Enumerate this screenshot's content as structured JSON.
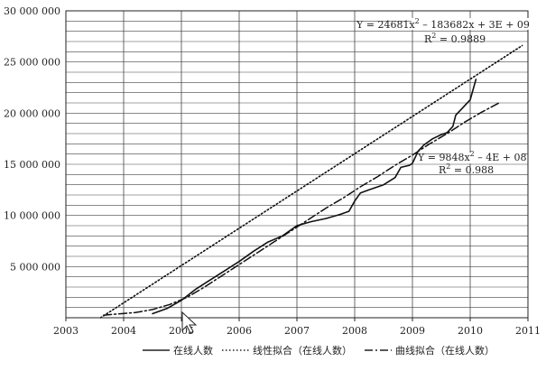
{
  "chart_data": {
    "type": "line",
    "xlim": [
      2003,
      2011
    ],
    "ylim": [
      0,
      30000000
    ],
    "grid": true,
    "x_ticks": [
      2003,
      2004,
      2005,
      2006,
      2007,
      2008,
      2009,
      2010,
      2011
    ],
    "x_tick_labels": [
      "2003",
      "2004",
      "2005",
      "2006",
      "2007",
      "2008",
      "2009",
      "2010",
      "2011"
    ],
    "y_ticks": [
      0,
      5000000,
      10000000,
      15000000,
      20000000,
      25000000,
      30000000
    ],
    "y_tick_labels": [
      "",
      "5 000 000",
      "10 000 000",
      "15 000 000",
      "20 000 000",
      "25 000 000",
      "30 000 000"
    ],
    "legend_position": "bottom",
    "series": [
      {
        "name": "在线人数",
        "style": "solid",
        "x": [
          2004.5,
          2004.75,
          2005.0,
          2005.25,
          2005.5,
          2005.75,
          2006.0,
          2006.25,
          2006.5,
          2006.75,
          2007.0,
          2007.25,
          2007.5,
          2007.75,
          2007.9,
          2008.0,
          2008.1,
          2008.25,
          2008.5,
          2008.7,
          2008.8,
          2008.95,
          2009.0,
          2009.1,
          2009.2,
          2009.35,
          2009.5,
          2009.6,
          2009.7,
          2009.75,
          2009.85,
          2010.0,
          2010.1
        ],
        "y": [
          400000,
          900000,
          1700000,
          2800000,
          3700000,
          4600000,
          5500000,
          6500000,
          7400000,
          8000000,
          9000000,
          9400000,
          9700000,
          10100000,
          10400000,
          11400000,
          12200000,
          12500000,
          13000000,
          13700000,
          14700000,
          14900000,
          15100000,
          16300000,
          16900000,
          17500000,
          17900000,
          18100000,
          18700000,
          19800000,
          20400000,
          21300000,
          23300000
        ]
      },
      {
        "name": "线性拟合（在线人数）",
        "style": "dotted",
        "x": [
          2003.6,
          2010.9
        ],
        "y": [
          -1800000,
          26600000
        ]
      },
      {
        "name": "曲线拟合（在线人数）",
        "style": "dashdot",
        "x": [
          2003.65,
          2003.9,
          2004.2,
          2004.5,
          2004.8,
          2005.1,
          2005.4,
          2005.7,
          2006.0,
          2006.3,
          2006.6,
          2006.9,
          2007.2,
          2007.5,
          2007.8,
          2008.1,
          2008.4,
          2008.7,
          2009.0,
          2009.3,
          2009.6,
          2009.9,
          2010.2,
          2010.5
        ],
        "y": [
          250000,
          370000,
          500000,
          800000,
          1300000,
          2000000,
          3000000,
          4100000,
          5200000,
          6300000,
          7400000,
          8500000,
          9600000,
          10700000,
          11700000,
          12800000,
          13800000,
          14900000,
          15900000,
          17000000,
          18000000,
          19100000,
          20100000,
          21000000
        ]
      }
    ],
    "annotations": [
      {
        "line1_a": "Y = 24681x",
        "line1_sup": "2",
        "line1_b": " – 183682x + 3E + 09",
        "line2_a": "R",
        "line2_sup": "2",
        "line2_b": " = 0.9889"
      },
      {
        "line1_a": "Y = 9848x",
        "line1_sup": "2",
        "line1_b": " – 4E + 08",
        "line2_a": "R",
        "line2_sup": "2",
        "line2_b": " = 0.988"
      }
    ]
  }
}
